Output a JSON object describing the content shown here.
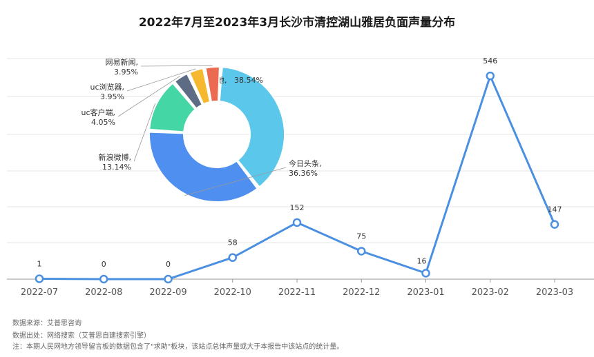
{
  "title": "2022年7月至2023年3月长沙市清控湖山雅居负面声量分布",
  "footer": {
    "source": "数据来源：艾普思咨询",
    "origin": "数据出处：网络搜索（艾普思自建搜索引擎）",
    "note": "注：本期人民网地方领导留言板的数据包含了\"求助\"板块，该站点总体声量或大于本报告中该站点的统计量。"
  },
  "colors": {
    "line": "#4a8fe0",
    "grid": "#e6e6e6",
    "axis": "#999999"
  },
  "chart_data": [
    {
      "type": "line",
      "categories": [
        "2022-07",
        "2022-08",
        "2022-09",
        "2022-10",
        "2022-11",
        "2022-12",
        "2023-01",
        "2023-02",
        "2023-03"
      ],
      "values": [
        1,
        0,
        0,
        58,
        152,
        75,
        16,
        546,
        147
      ],
      "data_labels": [
        "1",
        "0",
        "0",
        "58",
        "152",
        "75",
        "16",
        "546",
        "147"
      ],
      "ylim": [
        0,
        560
      ],
      "grid": true,
      "xlabel": "",
      "ylabel": ""
    },
    {
      "type": "pie",
      "slices": [
        {
          "label": "其他",
          "value": 38.54,
          "text": "其他, 38.54%",
          "color": "#5bc7ea"
        },
        {
          "label": "今日头条",
          "value": 36.36,
          "text": "今日头条, 36.36%",
          "color": "#4e8ff0"
        },
        {
          "label": "新浪微博",
          "value": 13.14,
          "text": "新浪微博, 13.14%",
          "color": "#44d6a4"
        },
        {
          "label": "uc客户端",
          "value": 4.05,
          "text": "uc客户端, 4.05%",
          "color": "#5d6b85"
        },
        {
          "label": "uc浏览器",
          "value": 3.95,
          "text": "uc浏览器, 3.95%",
          "color": "#f5b82e"
        },
        {
          "label": "网易新闻",
          "value": 3.95,
          "text": "网易新闻, 3.95%",
          "color": "#ec6a52"
        }
      ]
    }
  ]
}
